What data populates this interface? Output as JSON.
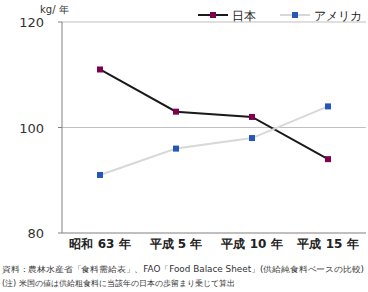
{
  "chart_data": {
    "type": "line",
    "y_label": "kg/ 年",
    "categories": [
      "昭和 63 年",
      "平成 5 年",
      "平成 10 年",
      "平成 15 年"
    ],
    "series": [
      {
        "name": "日本",
        "color": "#800050",
        "marker": "square",
        "values": [
          111,
          103,
          102,
          94
        ]
      },
      {
        "name": "アメリカ",
        "color": "#2457b8",
        "marker": "square",
        "values": [
          91,
          96,
          98,
          104
        ]
      }
    ],
    "ylim": [
      80,
      120
    ],
    "yticks": [
      80,
      100,
      120
    ],
    "grid": true,
    "legend": "top-right",
    "source": "資料：農林水産省「食料需給表」、FAO「Food Balace Sheet」(供給純食料ベースの比較)",
    "note": "(注) 米国の値は供給粗食料に当該年の日本の歩留まり乗じて算出"
  }
}
